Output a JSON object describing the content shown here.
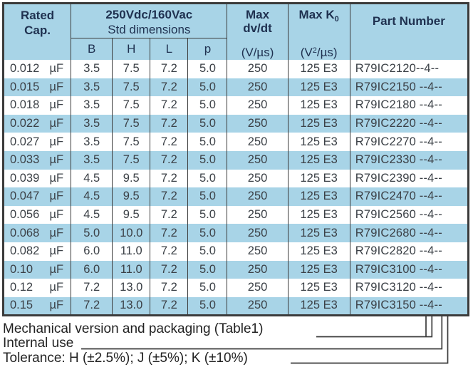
{
  "table": {
    "header": {
      "rated_cap": {
        "line1": "Rated",
        "line2": "Cap."
      },
      "dimensions": {
        "title": "250Vdc/160Vac",
        "subtitle": "Std dimensions",
        "columns": [
          "B",
          "H",
          "L",
          "p"
        ]
      },
      "max_dvdt": {
        "line1": "Max",
        "line2": "dv/dt",
        "unit": "(V/µs)"
      },
      "max_k0": {
        "label": "Max K",
        "subscript": "0",
        "unit_pre": "(V",
        "unit_sup": "2",
        "unit_post": "/µs)"
      },
      "part_number": "Part Number"
    },
    "rows": [
      {
        "cap": "0.012",
        "unit": "µF",
        "b": "3.5",
        "h": "7.5",
        "l": "7.2",
        "p": "5.0",
        "dvdt": "250",
        "k0": "125 E3",
        "part": "R79IC2120--4--"
      },
      {
        "cap": "0.015",
        "unit": "µF",
        "b": "3.5",
        "h": "7.5",
        "l": "7.2",
        "p": "5.0",
        "dvdt": "250",
        "k0": "125 E3",
        "part": "R79IC2150 --4--"
      },
      {
        "cap": "0.018",
        "unit": "µF",
        "b": "3.5",
        "h": "7.5",
        "l": "7.2",
        "p": "5.0",
        "dvdt": "250",
        "k0": "125 E3",
        "part": "R79IC2180 --4--"
      },
      {
        "cap": "0.022",
        "unit": "µF",
        "b": "3.5",
        "h": "7.5",
        "l": "7.2",
        "p": "5.0",
        "dvdt": "250",
        "k0": "125 E3",
        "part": "R79IC2220 --4--"
      },
      {
        "cap": "0.027",
        "unit": "µF",
        "b": "3.5",
        "h": "7.5",
        "l": "7.2",
        "p": "5.0",
        "dvdt": "250",
        "k0": "125 E3",
        "part": "R79IC2270 --4--"
      },
      {
        "cap": "0.033",
        "unit": "µF",
        "b": "3.5",
        "h": "7.5",
        "l": "7.2",
        "p": "5.0",
        "dvdt": "250",
        "k0": "125 E3",
        "part": "R79IC2330 --4--"
      },
      {
        "cap": "0.039",
        "unit": "µF",
        "b": "4.5",
        "h": "9.5",
        "l": "7.2",
        "p": "5.0",
        "dvdt": "250",
        "k0": "125 E3",
        "part": "R79IC2390 --4--"
      },
      {
        "cap": "0.047",
        "unit": "µF",
        "b": "4.5",
        "h": "9.5",
        "l": "7.2",
        "p": "5.0",
        "dvdt": "250",
        "k0": "125 E3",
        "part": "R79IC2470 --4--"
      },
      {
        "cap": "0.056",
        "unit": "µF",
        "b": "4.5",
        "h": "9.5",
        "l": "7.2",
        "p": "5.0",
        "dvdt": "250",
        "k0": "125 E3",
        "part": "R79IC2560 --4--"
      },
      {
        "cap": "0.068",
        "unit": "µF",
        "b": "5.0",
        "h": "10.0",
        "l": "7.2",
        "p": "5.0",
        "dvdt": "250",
        "k0": "125 E3",
        "part": "R79IC2680 --4--"
      },
      {
        "cap": "0.082",
        "unit": "µF",
        "b": "6.0",
        "h": "11.0",
        "l": "7.2",
        "p": "5.0",
        "dvdt": "250",
        "k0": "125 E3",
        "part": "R79IC2820 --4--"
      },
      {
        "cap": "0.10",
        "unit": "µF",
        "b": "6.0",
        "h": "11.0",
        "l": "7.2",
        "p": "5.0",
        "dvdt": "250",
        "k0": "125 E3",
        "part": "R79IC3100 --4--"
      },
      {
        "cap": "0.12",
        "unit": "µF",
        "b": "7.2",
        "h": "13.0",
        "l": "7.2",
        "p": "5.0",
        "dvdt": "250",
        "k0": "125 E3",
        "part": "R79IC3120 --4--"
      },
      {
        "cap": "0.15",
        "unit": "µF",
        "b": "7.2",
        "h": "13.0",
        "l": "7.2",
        "p": "5.0",
        "dvdt": "250",
        "k0": "125 E3",
        "part": "R79IC3150 --4--"
      }
    ]
  },
  "legend": {
    "mechanical": "Mechanical version and packaging (Table1)",
    "internal": "Internal use",
    "tolerance": "Tolerance: H (±2.5%); J (±5%); K (±10%)"
  },
  "colors": {
    "accent_blue": "#a8d4e7",
    "border_dark": "#3b3b3b",
    "header_text": "#1f3150"
  }
}
